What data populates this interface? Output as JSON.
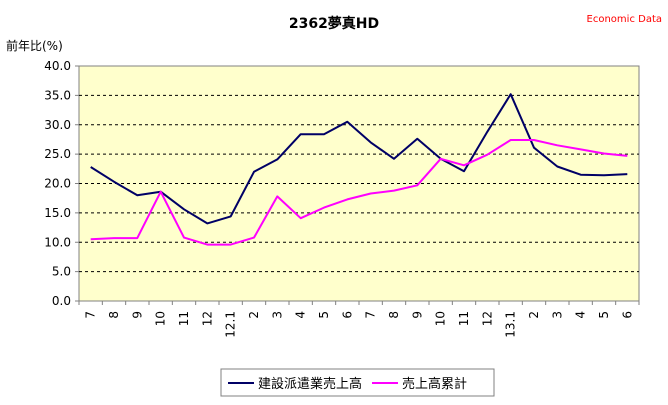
{
  "chart_data": {
    "type": "line",
    "title": "2362夢真HD",
    "source_label": "Economic Data",
    "ylabel": "前年比(%)",
    "xlabel": "",
    "ylim": [
      0,
      40
    ],
    "y_ticks": [
      "0.0",
      "5.0",
      "10.0",
      "15.0",
      "20.0",
      "25.0",
      "30.0",
      "35.0",
      "40.0"
    ],
    "grid": "horizontal dashed",
    "legend_position": "bottom",
    "categories": [
      "7",
      "8",
      "9",
      "10",
      "11",
      "12",
      "12.1",
      "2",
      "3",
      "4",
      "5",
      "6",
      "7",
      "8",
      "9",
      "10",
      "11",
      "12",
      "13.1",
      "2",
      "3",
      "4",
      "5",
      "6"
    ],
    "series": [
      {
        "name": "建設派遣業売上高",
        "color": "#000066",
        "values": [
          22.8,
          20.3,
          18.0,
          18.6,
          15.6,
          13.2,
          14.4,
          22.0,
          24.1,
          28.4,
          28.4,
          30.5,
          27.0,
          24.2,
          27.6,
          24.2,
          22.1,
          28.8,
          35.2,
          26.1,
          22.9,
          21.5,
          21.4,
          21.6
        ]
      },
      {
        "name": "売上高累計",
        "color": "#ff00ff",
        "values": [
          10.5,
          10.7,
          10.7,
          18.6,
          10.8,
          9.6,
          9.6,
          10.8,
          17.8,
          14.1,
          15.9,
          17.3,
          18.3,
          18.8,
          19.7,
          24.2,
          23.1,
          24.9,
          27.4,
          27.4,
          26.5,
          25.8,
          25.1,
          24.7
        ]
      }
    ]
  }
}
